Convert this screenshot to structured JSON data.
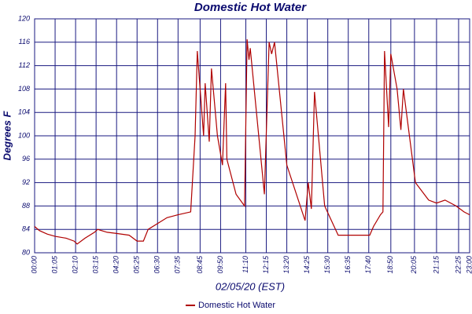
{
  "chart_data": {
    "type": "line",
    "title": "Domestic Hot Water",
    "xlabel": "02/05/20 (EST)",
    "ylabel": "Degrees F",
    "x": [
      "00:00",
      "00:15",
      "00:40",
      "01:05",
      "01:40",
      "02:05",
      "02:15",
      "02:40",
      "03:10",
      "03:20",
      "03:50",
      "04:20",
      "05:00",
      "05:25",
      "05:45",
      "06:00",
      "06:30",
      "07:00",
      "07:35",
      "08:15",
      "08:29",
      "08:36",
      "08:56",
      "09:01",
      "09:14",
      "09:21",
      "09:40",
      "09:56",
      "10:06",
      "10:10",
      "10:39",
      "11:06",
      "11:14",
      "11:20",
      "11:24",
      "12:09",
      "12:24",
      "12:32",
      "12:41",
      "13:20",
      "14:18",
      "14:28",
      "14:38",
      "14:48",
      "15:20",
      "16:03",
      "17:43",
      "17:55",
      "18:17",
      "18:25",
      "18:30",
      "18:43",
      "18:50",
      "19:10",
      "19:22",
      "19:30",
      "20:08",
      "20:50",
      "21:15",
      "21:42",
      "22:17",
      "22:42",
      "23:00"
    ],
    "series": [
      {
        "name": "Domestic Hot Water",
        "color": "#b00000",
        "values": [
          84.5,
          83.8,
          83.2,
          82.8,
          82.5,
          82.0,
          81.5,
          82.5,
          83.5,
          84.0,
          83.5,
          83.3,
          83.0,
          82.0,
          82.0,
          84.0,
          85.0,
          86.0,
          86.5,
          87.0,
          100,
          114.5,
          100,
          109,
          99,
          111.5,
          100,
          95,
          109,
          96,
          90,
          88,
          116.5,
          113,
          115,
          90,
          116,
          114,
          116,
          95,
          85.5,
          92,
          87.5,
          107.5,
          88,
          83,
          83,
          84.5,
          86.5,
          87,
          114.5,
          101.5,
          114,
          108,
          101,
          108,
          92,
          89,
          88.5,
          89,
          88,
          87,
          86.5
        ]
      }
    ],
    "xlim": [
      "00:00",
      "23:00"
    ],
    "xticks": [
      "00:00",
      "01:05",
      "02:10",
      "03:15",
      "04:20",
      "05:25",
      "06:30",
      "07:35",
      "08:45",
      "09:50",
      "11:10",
      "12:15",
      "13:20",
      "14:25",
      "15:30",
      "16:35",
      "17:40",
      "18:50",
      "20:05",
      "21:15",
      "22:25",
      "23:00"
    ],
    "ylim": [
      80,
      120
    ],
    "yticks": [
      80,
      84,
      88,
      92,
      96,
      100,
      104,
      108,
      112,
      116,
      120
    ],
    "grid": true,
    "legend": "bottom"
  }
}
